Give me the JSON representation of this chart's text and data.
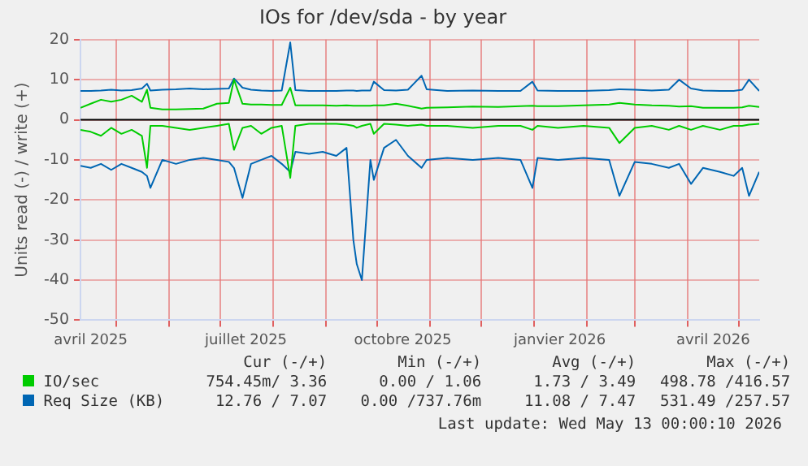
{
  "chart_data": {
    "type": "line",
    "title": "IOs for /dev/sda - by year",
    "ylabel": "Units read (-) / write (+)",
    "x": [
      "2025-04-10",
      "2025-04-16",
      "2025-04-22",
      "2025-04-28",
      "2025-05-04",
      "2025-05-10",
      "2025-05-16",
      "2025-05-19",
      "2025-05-21",
      "2025-05-28",
      "2025-06-05",
      "2025-06-13",
      "2025-06-21",
      "2025-06-29",
      "2025-07-06",
      "2025-07-09",
      "2025-07-14",
      "2025-07-19",
      "2025-07-25",
      "2025-07-31",
      "2025-08-06",
      "2025-08-11",
      "2025-08-14",
      "2025-08-22",
      "2025-08-30",
      "2025-09-07",
      "2025-09-13",
      "2025-09-17",
      "2025-09-19",
      "2025-09-22",
      "2025-09-27",
      "2025-09-29",
      "2025-10-05",
      "2025-10-12",
      "2025-10-19",
      "2025-10-27",
      "2025-10-30",
      "2025-11-11",
      "2025-11-26",
      "2025-12-11",
      "2025-12-24",
      "2025-12-31",
      "2026-01-03",
      "2026-01-15",
      "2026-01-30",
      "2026-02-14",
      "2026-02-20",
      "2026-03-01",
      "2026-03-11",
      "2026-03-21",
      "2026-03-27",
      "2026-04-03",
      "2026-04-10",
      "2026-04-20",
      "2026-04-28",
      "2026-05-03",
      "2026-05-07",
      "2026-05-13"
    ],
    "series": [
      {
        "name": "IO/sec",
        "color": "#00cc00",
        "values": [
          3,
          4,
          5,
          4.5,
          5,
          6,
          4.5,
          7.5,
          3,
          2.6,
          2.6,
          2.7,
          2.8,
          4,
          4.2,
          10,
          4,
          3.8,
          3.8,
          3.7,
          3.7,
          8,
          3.6,
          3.6,
          3.6,
          3.5,
          3.6,
          3.5,
          3.5,
          3.5,
          3.5,
          3.6,
          3.6,
          4,
          3.5,
          2.8,
          3,
          3.1,
          3.3,
          3.2,
          3.4,
          3.5,
          3.4,
          3.4,
          3.6,
          3.8,
          4.2,
          3.8,
          3.6,
          3.5,
          3.3,
          3.4,
          3,
          3,
          3,
          3.1,
          3.5,
          3.2
        ]
      },
      {
        "color": "#00cc00",
        "values": [
          -2.5,
          -3,
          -4,
          -2,
          -3.5,
          -2.5,
          -4,
          -12,
          -1.5,
          -1.5,
          -2,
          -2.5,
          -2,
          -1.5,
          -1,
          -7.5,
          -2,
          -1.5,
          -3.5,
          -2,
          -1.5,
          -14.5,
          -1.5,
          -1,
          -1,
          -1,
          -1.2,
          -1.5,
          -2,
          -1.5,
          -1,
          -3.5,
          -1,
          -1.2,
          -1.5,
          -1.2,
          -1.5,
          -1.5,
          -2,
          -1.5,
          -1.5,
          -2.5,
          -1.5,
          -2,
          -1.5,
          -2,
          -5.8,
          -2,
          -1.5,
          -2.5,
          -1.5,
          -2.5,
          -1.5,
          -2.5,
          -1.5,
          -1.5,
          -1.2,
          -1
        ]
      },
      {
        "name": "Req Size (KB)",
        "color": "#0066b3",
        "values": [
          7.2,
          7.2,
          7.3,
          7.5,
          7.3,
          7.4,
          7.8,
          9,
          7.3,
          7.5,
          7.6,
          7.8,
          7.6,
          7.7,
          7.8,
          10.3,
          8,
          7.5,
          7.3,
          7.2,
          7.3,
          19.3,
          7.4,
          7.2,
          7.2,
          7.2,
          7.3,
          7.3,
          7.2,
          7.3,
          7.3,
          9.5,
          7.4,
          7.3,
          7.5,
          11,
          7.6,
          7.2,
          7.3,
          7.2,
          7.2,
          9.5,
          7.3,
          7.2,
          7.2,
          7.4,
          7.6,
          7.5,
          7.3,
          7.5,
          10,
          7.8,
          7.3,
          7.2,
          7.2,
          7.5,
          10,
          7.2
        ]
      },
      {
        "color": "#0066b3",
        "values": [
          -11.5,
          -12,
          -11,
          -12.5,
          -11,
          -12,
          -13,
          -14,
          -17,
          -10,
          -11,
          -10,
          -9.5,
          -10,
          -10.5,
          -12,
          -19.5,
          -11,
          -10,
          -9,
          -11,
          -13,
          -8,
          -8.5,
          -8,
          -9,
          -7,
          -30,
          -36,
          -40,
          -10,
          -15,
          -7,
          -5,
          -9,
          -12,
          -10,
          -9.5,
          -10,
          -9.5,
          -10,
          -17,
          -9.5,
          -10,
          -9.5,
          -10,
          -19,
          -10.5,
          -11,
          -12,
          -11,
          -16,
          -12,
          -13,
          -14,
          -12,
          -19,
          -13
        ]
      }
    ],
    "xlim": [
      "2025-04-10",
      "2026-05-13"
    ],
    "xticks": [
      {
        "value": "2025-04-16",
        "label": "avril 2025"
      },
      {
        "value": "2025-05-01",
        "label": null
      },
      {
        "value": "2025-06-01",
        "label": null
      },
      {
        "value": "2025-07-01",
        "label": null
      },
      {
        "value": "2025-07-16",
        "label": "juillet 2025"
      },
      {
        "value": "2025-08-01",
        "label": null
      },
      {
        "value": "2025-09-01",
        "label": null
      },
      {
        "value": "2025-10-01",
        "label": null
      },
      {
        "value": "2025-10-16",
        "label": "octobre 2025"
      },
      {
        "value": "2025-11-01",
        "label": null
      },
      {
        "value": "2025-12-01",
        "label": null
      },
      {
        "value": "2026-01-01",
        "label": null
      },
      {
        "value": "2026-01-16",
        "label": "janvier 2026"
      },
      {
        "value": "2026-02-01",
        "label": null
      },
      {
        "value": "2026-03-01",
        "label": null
      },
      {
        "value": "2026-04-01",
        "label": null
      },
      {
        "value": "2026-04-16",
        "label": "avril 2026"
      },
      {
        "value": "2026-05-01",
        "label": null
      }
    ],
    "ylim": [
      -50,
      20
    ],
    "yticks": [
      -50,
      -40,
      -30,
      -20,
      -10,
      0,
      10,
      20
    ],
    "ref_lines": [
      {
        "axis": "y",
        "value": 0,
        "color": "#000000"
      }
    ],
    "grid": true,
    "legend": "bottom",
    "marker": "none",
    "line_style": "solid",
    "annotations": [
      "Cur (-/+)",
      "Min (-/+)",
      "Avg (-/+)",
      "Max (-/+)",
      "754.45m/ 3.36",
      "0.00 / 1.06",
      "1.73 / 3.49",
      "498.78 /416.57",
      "12.76 / 7.07",
      "0.00 /737.76m",
      "11.08 / 7.47",
      "531.49 /257.57",
      "Last update: Wed May 13 00:00:10 2026"
    ]
  }
}
